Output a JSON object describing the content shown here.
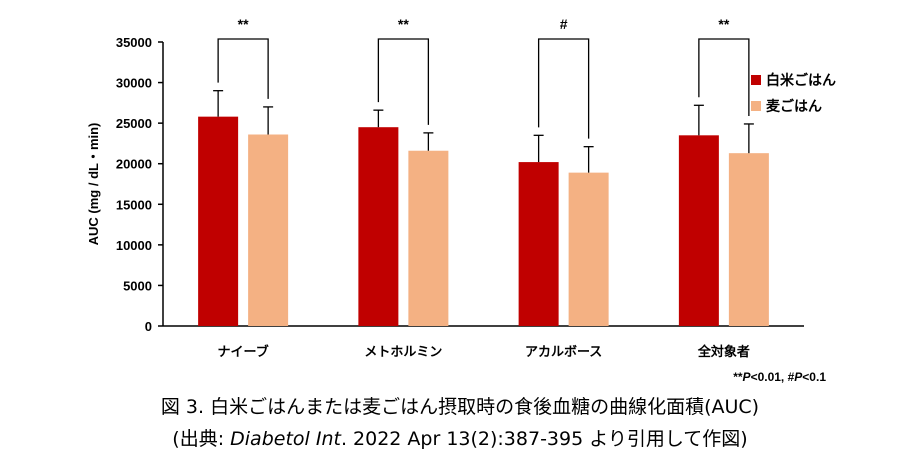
{
  "chart_data": {
    "type": "bar",
    "ylabel": "AUC (mg / dL・min)",
    "ylim": [
      0,
      35000
    ],
    "yticks": [
      0,
      5000,
      10000,
      15000,
      20000,
      25000,
      30000,
      35000
    ],
    "categories": [
      "ナイーブ",
      "メトホルミン",
      "アカルボース",
      "全対象者"
    ],
    "series": [
      {
        "name": "白米ごはん",
        "color": "#c00000",
        "values": [
          25800,
          24500,
          20200,
          23500
        ],
        "errors": [
          3200,
          2100,
          3300,
          3700
        ]
      },
      {
        "name": "麦ごはん",
        "color": "#f4b183",
        "values": [
          23600,
          21600,
          18900,
          21300
        ],
        "errors": [
          3400,
          2200,
          3200,
          3600
        ]
      }
    ],
    "significance": [
      "**",
      "**",
      "#",
      "**"
    ],
    "significance_note": {
      "prefix": "**",
      "p1": "P",
      "t1": "<0.01, #",
      "p2": "P",
      "t2": "<0.1"
    },
    "legend_position": "right",
    "grid": false
  },
  "caption": {
    "line1": "図 3. 白米ごはんまたは麦ごはん摂取時の食後血糖の曲線化面積(AUC)",
    "line2_pre": "(出典: ",
    "line2_italic": "Diabetol Int",
    "line2_post": ". 2022 Apr 13(2):387-395 より引用して作図)"
  }
}
